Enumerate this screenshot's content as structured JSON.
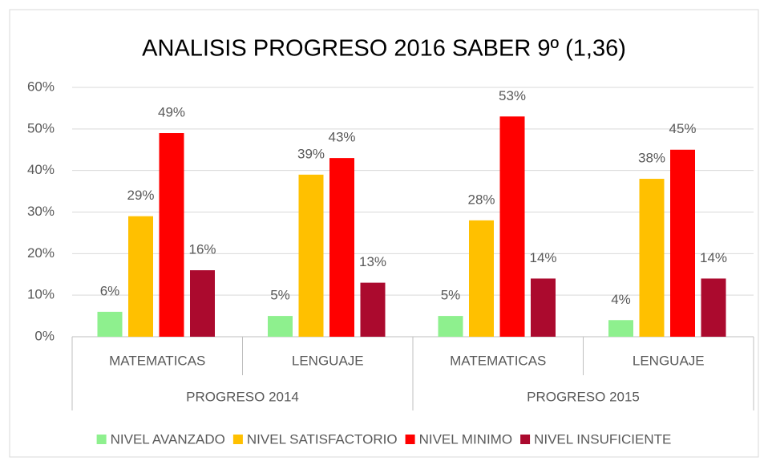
{
  "chart_data": {
    "type": "bar",
    "title": "ANALISIS PROGRESO 2016 SABER 9º (1,36)",
    "categories": [
      "MATEMATICAS",
      "LENGUAJE",
      "MATEMATICAS",
      "LENGUAJE"
    ],
    "category_groups": [
      "PROGRESO 2014",
      "PROGRESO 2015"
    ],
    "series": [
      {
        "name": "NIVEL AVANZADO",
        "color": "#8ef08e",
        "values": [
          6,
          5,
          5,
          4
        ],
        "value_labels": [
          "6%",
          "5%",
          "5%",
          "4%"
        ]
      },
      {
        "name": "NIVEL SATISFACTORIO",
        "color": "#ffc000",
        "values": [
          29,
          39,
          28,
          38
        ],
        "value_labels": [
          "29%",
          "39%",
          "28%",
          "38%"
        ]
      },
      {
        "name": "NIVEL MINIMO",
        "color": "#ff0000",
        "values": [
          49,
          43,
          53,
          45
        ],
        "value_labels": [
          "49%",
          "43%",
          "53%",
          "45%"
        ]
      },
      {
        "name": "NIVEL INSUFICIENTE",
        "color": "#ab0a2e",
        "values": [
          16,
          13,
          14,
          14
        ],
        "value_labels": [
          "16%",
          "13%",
          "14%",
          "14%"
        ]
      }
    ],
    "ylim": [
      0,
      60
    ],
    "yticks": [
      {
        "value": 0,
        "label": "0%"
      },
      {
        "value": 10,
        "label": "10%"
      },
      {
        "value": 20,
        "label": "20%"
      },
      {
        "value": 30,
        "label": "30%"
      },
      {
        "value": 40,
        "label": "40%"
      },
      {
        "value": 50,
        "label": "50%"
      },
      {
        "value": 60,
        "label": "60%"
      }
    ],
    "grid": true,
    "legend": "bottom"
  }
}
